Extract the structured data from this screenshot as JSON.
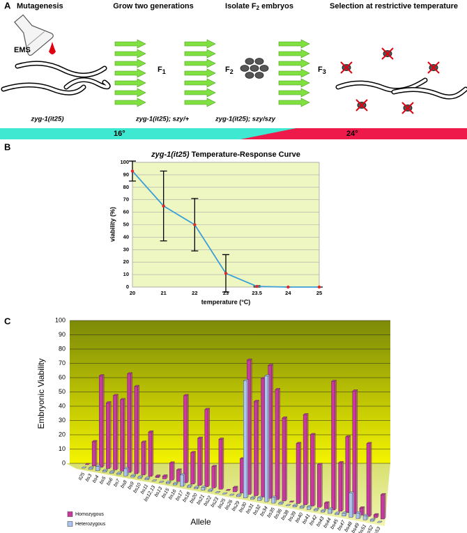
{
  "panel_a": {
    "label": "A",
    "mutagenesis": "Mutagenesis",
    "grow": "Grow two generations",
    "isolate": {
      "before": "Isolate F",
      "sub": "2",
      "after": "embryos"
    },
    "selection": "Selection at restrictive temperature",
    "mutagen": "EMS",
    "generations": [
      {
        "main": "F",
        "sub": "1"
      },
      {
        "main": "F",
        "sub": "2"
      },
      {
        "main": "F",
        "sub": "3"
      }
    ],
    "genotypes": [
      "zyg-1(it25)",
      "zyg-1(it25); szy/+",
      "zyg-1(it25); szy/szy"
    ],
    "temperatures": [
      "16°",
      "24°"
    ]
  },
  "chart_data": [
    {
      "panel": "B",
      "type": "line",
      "title": {
        "italic": "zyg-1(it25)",
        "text": "Temperature-Response Curve"
      },
      "xlabel": "temperature (°C)",
      "ylabel": "viability (%)",
      "categories": [
        "20",
        "21",
        "22",
        "23",
        "23.5",
        "24",
        "25"
      ],
      "values": [
        93,
        65,
        50,
        11,
        0.5,
        0,
        0
      ],
      "errors": [
        8,
        28,
        21,
        15,
        0.5,
        0,
        0
      ],
      "color": "#3a9fd6",
      "marker_color": "#e02828",
      "ylim": [
        0,
        100
      ],
      "yticks": [
        0,
        10,
        20,
        30,
        40,
        50,
        60,
        70,
        80,
        90,
        100
      ],
      "grid": true
    },
    {
      "panel": "C",
      "type": "bar3d",
      "xlabel": "Allele",
      "ylabel": "Embryonic Viability",
      "categories": [
        "it25",
        "bs3",
        "bs4",
        "bs5",
        "bs6",
        "bs7",
        "bs8",
        "bs9",
        "bs10",
        "bs11",
        "bs12,13",
        "bs13",
        "bs15",
        "bs16",
        "bs17",
        "bs18",
        "bs20",
        "bs21",
        "bs22",
        "bs23",
        "bs25",
        "bs26",
        "bs29",
        "bs30",
        "bs31",
        "bs32",
        "bs34",
        "bs35",
        "bs36",
        "bs38",
        "bs39",
        "bs40",
        "bs41",
        "bs42",
        "bs43",
        "bs44",
        "bs45",
        "bs47",
        "bs48",
        "bs49",
        "bs51",
        "bs52",
        "bs53"
      ],
      "series": [
        {
          "name": "Homozygous",
          "color": "#c8389e",
          "values": [
            0,
            17,
            64,
            46,
            52,
            50,
            69,
            61,
            23,
            31,
            1,
            2,
            12,
            8,
            61,
            22,
            33,
            54,
            15,
            35,
            0,
            3,
            24,
            94,
            66,
            83,
            93,
            77,
            58,
            0,
            42,
            63,
            50,
            30,
            4,
            90,
            34,
            53,
            86,
            5,
            51,
            2,
            17
          ]
        },
        {
          "name": "Heterozygous",
          "color": "#a9c3ec",
          "values": [
            0,
            1,
            3,
            1,
            1,
            1,
            5,
            1,
            1,
            1,
            0,
            0,
            1,
            1,
            8,
            1,
            1,
            2,
            1,
            0,
            0,
            0,
            1,
            82,
            1,
            2,
            88,
            4,
            1,
            0,
            1,
            1,
            2,
            1,
            1,
            3,
            1,
            2,
            17,
            4,
            3,
            1,
            0
          ]
        }
      ],
      "ylim": [
        0,
        100
      ],
      "yticks": [
        0,
        10,
        20,
        30,
        40,
        50,
        60,
        70,
        80,
        90,
        100
      ],
      "grid": true
    }
  ]
}
